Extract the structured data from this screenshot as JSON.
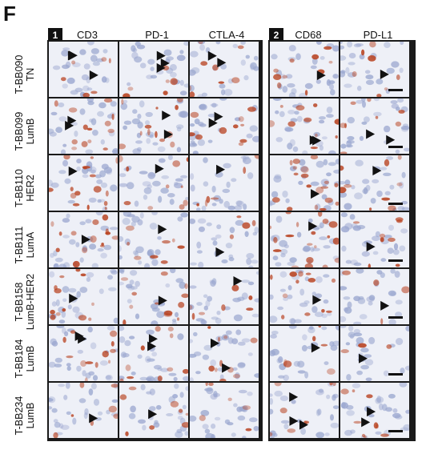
{
  "panel_label": "F",
  "groups": [
    {
      "badge": "1",
      "columns": [
        "CD3",
        "PD-1",
        "CTLA-4"
      ]
    },
    {
      "badge": "2",
      "columns": [
        "CD68",
        "PD-L1"
      ]
    }
  ],
  "rows": [
    {
      "id": "T-BB090",
      "subtype": "TN"
    },
    {
      "id": "T-BB099",
      "subtype": "LumB"
    },
    {
      "id": "T-BB110",
      "subtype": "HER2"
    },
    {
      "id": "T-BB111",
      "subtype": "LumA"
    },
    {
      "id": "T-BB158",
      "subtype": "LumB-HER2"
    },
    {
      "id": "T-BB184",
      "subtype": "LumB"
    },
    {
      "id": "T-BB234",
      "subtype": "LumB"
    }
  ],
  "colors": {
    "tissue_background": "#eef0f7",
    "nuclei": "#9aa6cf",
    "stain": "#b8411f",
    "arrow": "#111111",
    "scale_bar": "#111111"
  },
  "stain_density": [
    [
      0.25,
      0.25,
      0.35,
      0.45,
      0.3
    ],
    [
      0.6,
      0.55,
      0.45,
      0.45,
      0.35
    ],
    [
      0.75,
      0.45,
      0.25,
      0.8,
      0.4
    ],
    [
      0.65,
      0.35,
      0.2,
      0.85,
      0.35
    ],
    [
      0.55,
      0.55,
      0.3,
      0.55,
      0.2
    ],
    [
      0.55,
      0.45,
      0.45,
      0.25,
      0.15
    ],
    [
      0.3,
      0.35,
      0.25,
      0.35,
      0.4
    ]
  ],
  "arrow_counts": [
    [
      3,
      3,
      2,
      1,
      1
    ],
    [
      2,
      2,
      2,
      2,
      2
    ],
    [
      1,
      1,
      1,
      1,
      1
    ],
    [
      1,
      1,
      1,
      1,
      1
    ],
    [
      1,
      1,
      1,
      1,
      1
    ],
    [
      2,
      2,
      2,
      1,
      1
    ],
    [
      1,
      1,
      0,
      3,
      2
    ]
  ]
}
